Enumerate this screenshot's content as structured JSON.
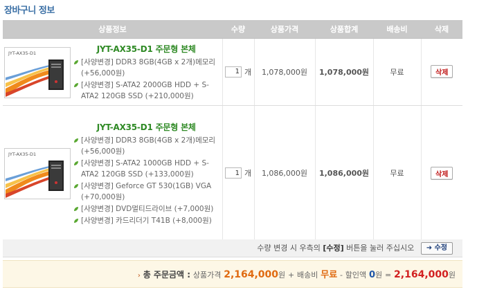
{
  "page": {
    "title": "장바구니 정보"
  },
  "table": {
    "headers": [
      "상품정보",
      "수량",
      "상품가격",
      "상품합계",
      "배송비",
      "삭제"
    ]
  },
  "items": [
    {
      "thumb_caption": "JYT-AX35-D1",
      "name": "JYT-AX35-D1 주문형 본체",
      "options": [
        "[사양변경] DDR3 8GB(4GB x 2개)메모리 (+56,000원)",
        "[사양변경] S-ATA2 2000GB HDD + S-ATA2 120GB SSD (+210,000원)"
      ],
      "qty": "1",
      "qty_unit": "개",
      "price": "1,078,000원",
      "subtotal": "1,078,000원",
      "shipping": "무료",
      "delete_label": "삭제"
    },
    {
      "thumb_caption": "JYT-AX35-D1",
      "name": "JYT-AX35-D1 주문형 본체",
      "options": [
        "[사양변경] DDR3 8GB(4GB x 2개)메모리 (+56,000원)",
        "[사양변경] S-ATA2 1000GB HDD + S-ATA2 120GB SSD (+133,000원)",
        "[사양변경] Geforce GT 530(1GB) VGA (+70,000원)",
        "[사양변경] DVD멀티드라이브 (+7,000원)",
        "[사양변경] 카드리더기 T41B (+8,000원)"
      ],
      "qty": "1",
      "qty_unit": "개",
      "price": "1,086,000원",
      "subtotal": "1,086,000원",
      "shipping": "무료",
      "delete_label": "삭제"
    }
  ],
  "notice": {
    "text_before": "수량 변경 시 우측의 ",
    "text_bold": "[수정]",
    "text_after": " 버튼을 눌러 주십시오",
    "arrow": "➜",
    "modify_label": "수정"
  },
  "totals": {
    "arrow": "›",
    "label": "총 주문금액 :",
    "goods_label": "상품가격",
    "goods_value": "2,164,000",
    "won1": "원",
    "plus": "+",
    "shipping_label": "배송비",
    "shipping_value": "무료",
    "minus": "-",
    "discount_label": "할인액",
    "discount_value": "0",
    "won2": "원",
    "equals": "=",
    "grand_value": "2,164,000",
    "won3": "원"
  },
  "colors": {
    "header_bg": "#c9c9c9",
    "product_name": "#2f8a25",
    "subtotal": "#e06a10",
    "delete_text": "#c01818",
    "grand_total": "#d22020",
    "total_bg": "#fdf7e6"
  }
}
